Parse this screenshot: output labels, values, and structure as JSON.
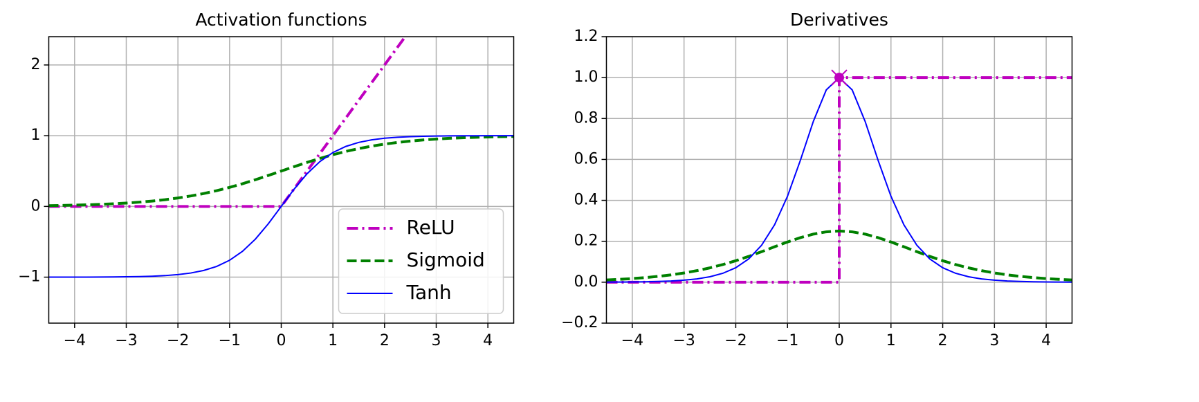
{
  "chart_data": [
    {
      "type": "line",
      "title": "Activation functions",
      "x": [
        -4.5,
        -4.25,
        -4,
        -3.75,
        -3.5,
        -3.25,
        -3,
        -2.75,
        -2.5,
        -2.25,
        -2,
        -1.75,
        -1.5,
        -1.25,
        -1,
        -0.75,
        -0.5,
        -0.25,
        0,
        0.25,
        0.5,
        0.75,
        1,
        1.25,
        1.5,
        1.75,
        2,
        2.25,
        2.5,
        2.75,
        3,
        3.25,
        3.5,
        3.75,
        4,
        4.25,
        4.5
      ],
      "series": [
        {
          "name": "ReLU",
          "color": "#bf00bf",
          "style": "dashdot",
          "width": 4,
          "x": [
            -4.5,
            0,
            4.5
          ],
          "values": [
            0,
            0,
            4.5
          ]
        },
        {
          "name": "Sigmoid",
          "color": "#008000",
          "style": "dashed",
          "width": 4,
          "values": [
            0.011,
            0.0141,
            0.018,
            0.023,
            0.0293,
            0.0373,
            0.0474,
            0.0601,
            0.0759,
            0.0953,
            0.1192,
            0.148,
            0.1824,
            0.2227,
            0.2689,
            0.3208,
            0.3775,
            0.4378,
            0.5,
            0.5622,
            0.6225,
            0.6792,
            0.7311,
            0.7773,
            0.8176,
            0.852,
            0.8808,
            0.9047,
            0.9241,
            0.9399,
            0.9526,
            0.9627,
            0.9707,
            0.977,
            0.982,
            0.9859,
            0.989
          ]
        },
        {
          "name": "Tanh",
          "color": "#0000ff",
          "style": "solid",
          "width": 2,
          "values": [
            -0.9998,
            -0.9996,
            -0.9993,
            -0.9989,
            -0.9982,
            -0.997,
            -0.9951,
            -0.9919,
            -0.9866,
            -0.978,
            -0.964,
            -0.9414,
            -0.9051,
            -0.8483,
            -0.7616,
            -0.6351,
            -0.4621,
            -0.2449,
            0,
            0.2449,
            0.4621,
            0.6351,
            0.7616,
            0.8483,
            0.9051,
            0.9414,
            0.964,
            0.978,
            0.9866,
            0.9919,
            0.9951,
            0.997,
            0.9982,
            0.9989,
            0.9993,
            0.9996,
            0.9998
          ]
        }
      ],
      "xlim": [
        -4.5,
        4.5
      ],
      "xticks": [
        {
          "value": -4,
          "label": "−4"
        },
        {
          "value": -3,
          "label": "−3"
        },
        {
          "value": -2,
          "label": "−2"
        },
        {
          "value": -1,
          "label": "−1"
        },
        0,
        1,
        2,
        3,
        4
      ],
      "ylim": [
        -1.65,
        2.4
      ],
      "yticks": [
        {
          "value": -1,
          "label": "−1"
        },
        0,
        1,
        2
      ],
      "grid": true,
      "legend": "lower right"
    },
    {
      "type": "line",
      "title": "Derivatives",
      "x": [
        -4.5,
        -4.25,
        -4,
        -3.75,
        -3.5,
        -3.25,
        -3,
        -2.75,
        -2.5,
        -2.25,
        -2,
        -1.75,
        -1.5,
        -1.25,
        -1,
        -0.75,
        -0.5,
        -0.25,
        0,
        0.25,
        0.5,
        0.75,
        1,
        1.25,
        1.5,
        1.75,
        2,
        2.25,
        2.5,
        2.75,
        3,
        3.25,
        3.5,
        3.75,
        4,
        4.25,
        4.5
      ],
      "series": [
        {
          "color": "#bf00bf",
          "style": "dashdot",
          "width": 4,
          "x": [
            -4.5,
            0,
            0,
            4.5
          ],
          "values": [
            0,
            0,
            1,
            1
          ]
        },
        {
          "color": "#008000",
          "style": "dashed",
          "width": 4,
          "values": [
            0.0109,
            0.0139,
            0.0177,
            0.0225,
            0.0284,
            0.0359,
            0.0452,
            0.0565,
            0.0701,
            0.0862,
            0.105,
            0.1261,
            0.1491,
            0.1731,
            0.1966,
            0.2179,
            0.235,
            0.2461,
            0.25,
            0.2461,
            0.235,
            0.2179,
            0.1966,
            0.1731,
            0.1491,
            0.1261,
            0.105,
            0.0862,
            0.0701,
            0.0565,
            0.0452,
            0.0359,
            0.0284,
            0.0225,
            0.0177,
            0.0139,
            0.0109
          ]
        },
        {
          "color": "#0000ff",
          "style": "solid",
          "width": 2,
          "values": [
            0.0005,
            0.0008,
            0.0013,
            0.0022,
            0.0036,
            0.006,
            0.0099,
            0.0161,
            0.0266,
            0.0435,
            0.0707,
            0.1138,
            0.1807,
            0.2804,
            0.42,
            0.5966,
            0.7864,
            0.94,
            1,
            0.94,
            0.7864,
            0.5966,
            0.42,
            0.2804,
            0.1807,
            0.1138,
            0.0707,
            0.0435,
            0.0266,
            0.0161,
            0.0099,
            0.006,
            0.0036,
            0.0022,
            0.0013,
            0.0008,
            0.0005
          ]
        }
      ],
      "highlight": {
        "x": 0,
        "y": 1,
        "color": "#bf00bf"
      },
      "xlim": [
        -4.5,
        4.5
      ],
      "xticks": [
        {
          "value": -4,
          "label": "−4"
        },
        {
          "value": -3,
          "label": "−3"
        },
        {
          "value": -2,
          "label": "−2"
        },
        {
          "value": -1,
          "label": "−1"
        },
        0,
        1,
        2,
        3,
        4
      ],
      "ylim": [
        -0.2,
        1.2
      ],
      "yticks": [
        {
          "value": -0.2,
          "label": "−0.2"
        },
        {
          "value": 0,
          "label": "0.0"
        },
        0.2,
        0.4,
        0.6,
        0.8,
        {
          "value": 1,
          "label": "1.0"
        },
        1.2
      ],
      "grid": true
    }
  ]
}
